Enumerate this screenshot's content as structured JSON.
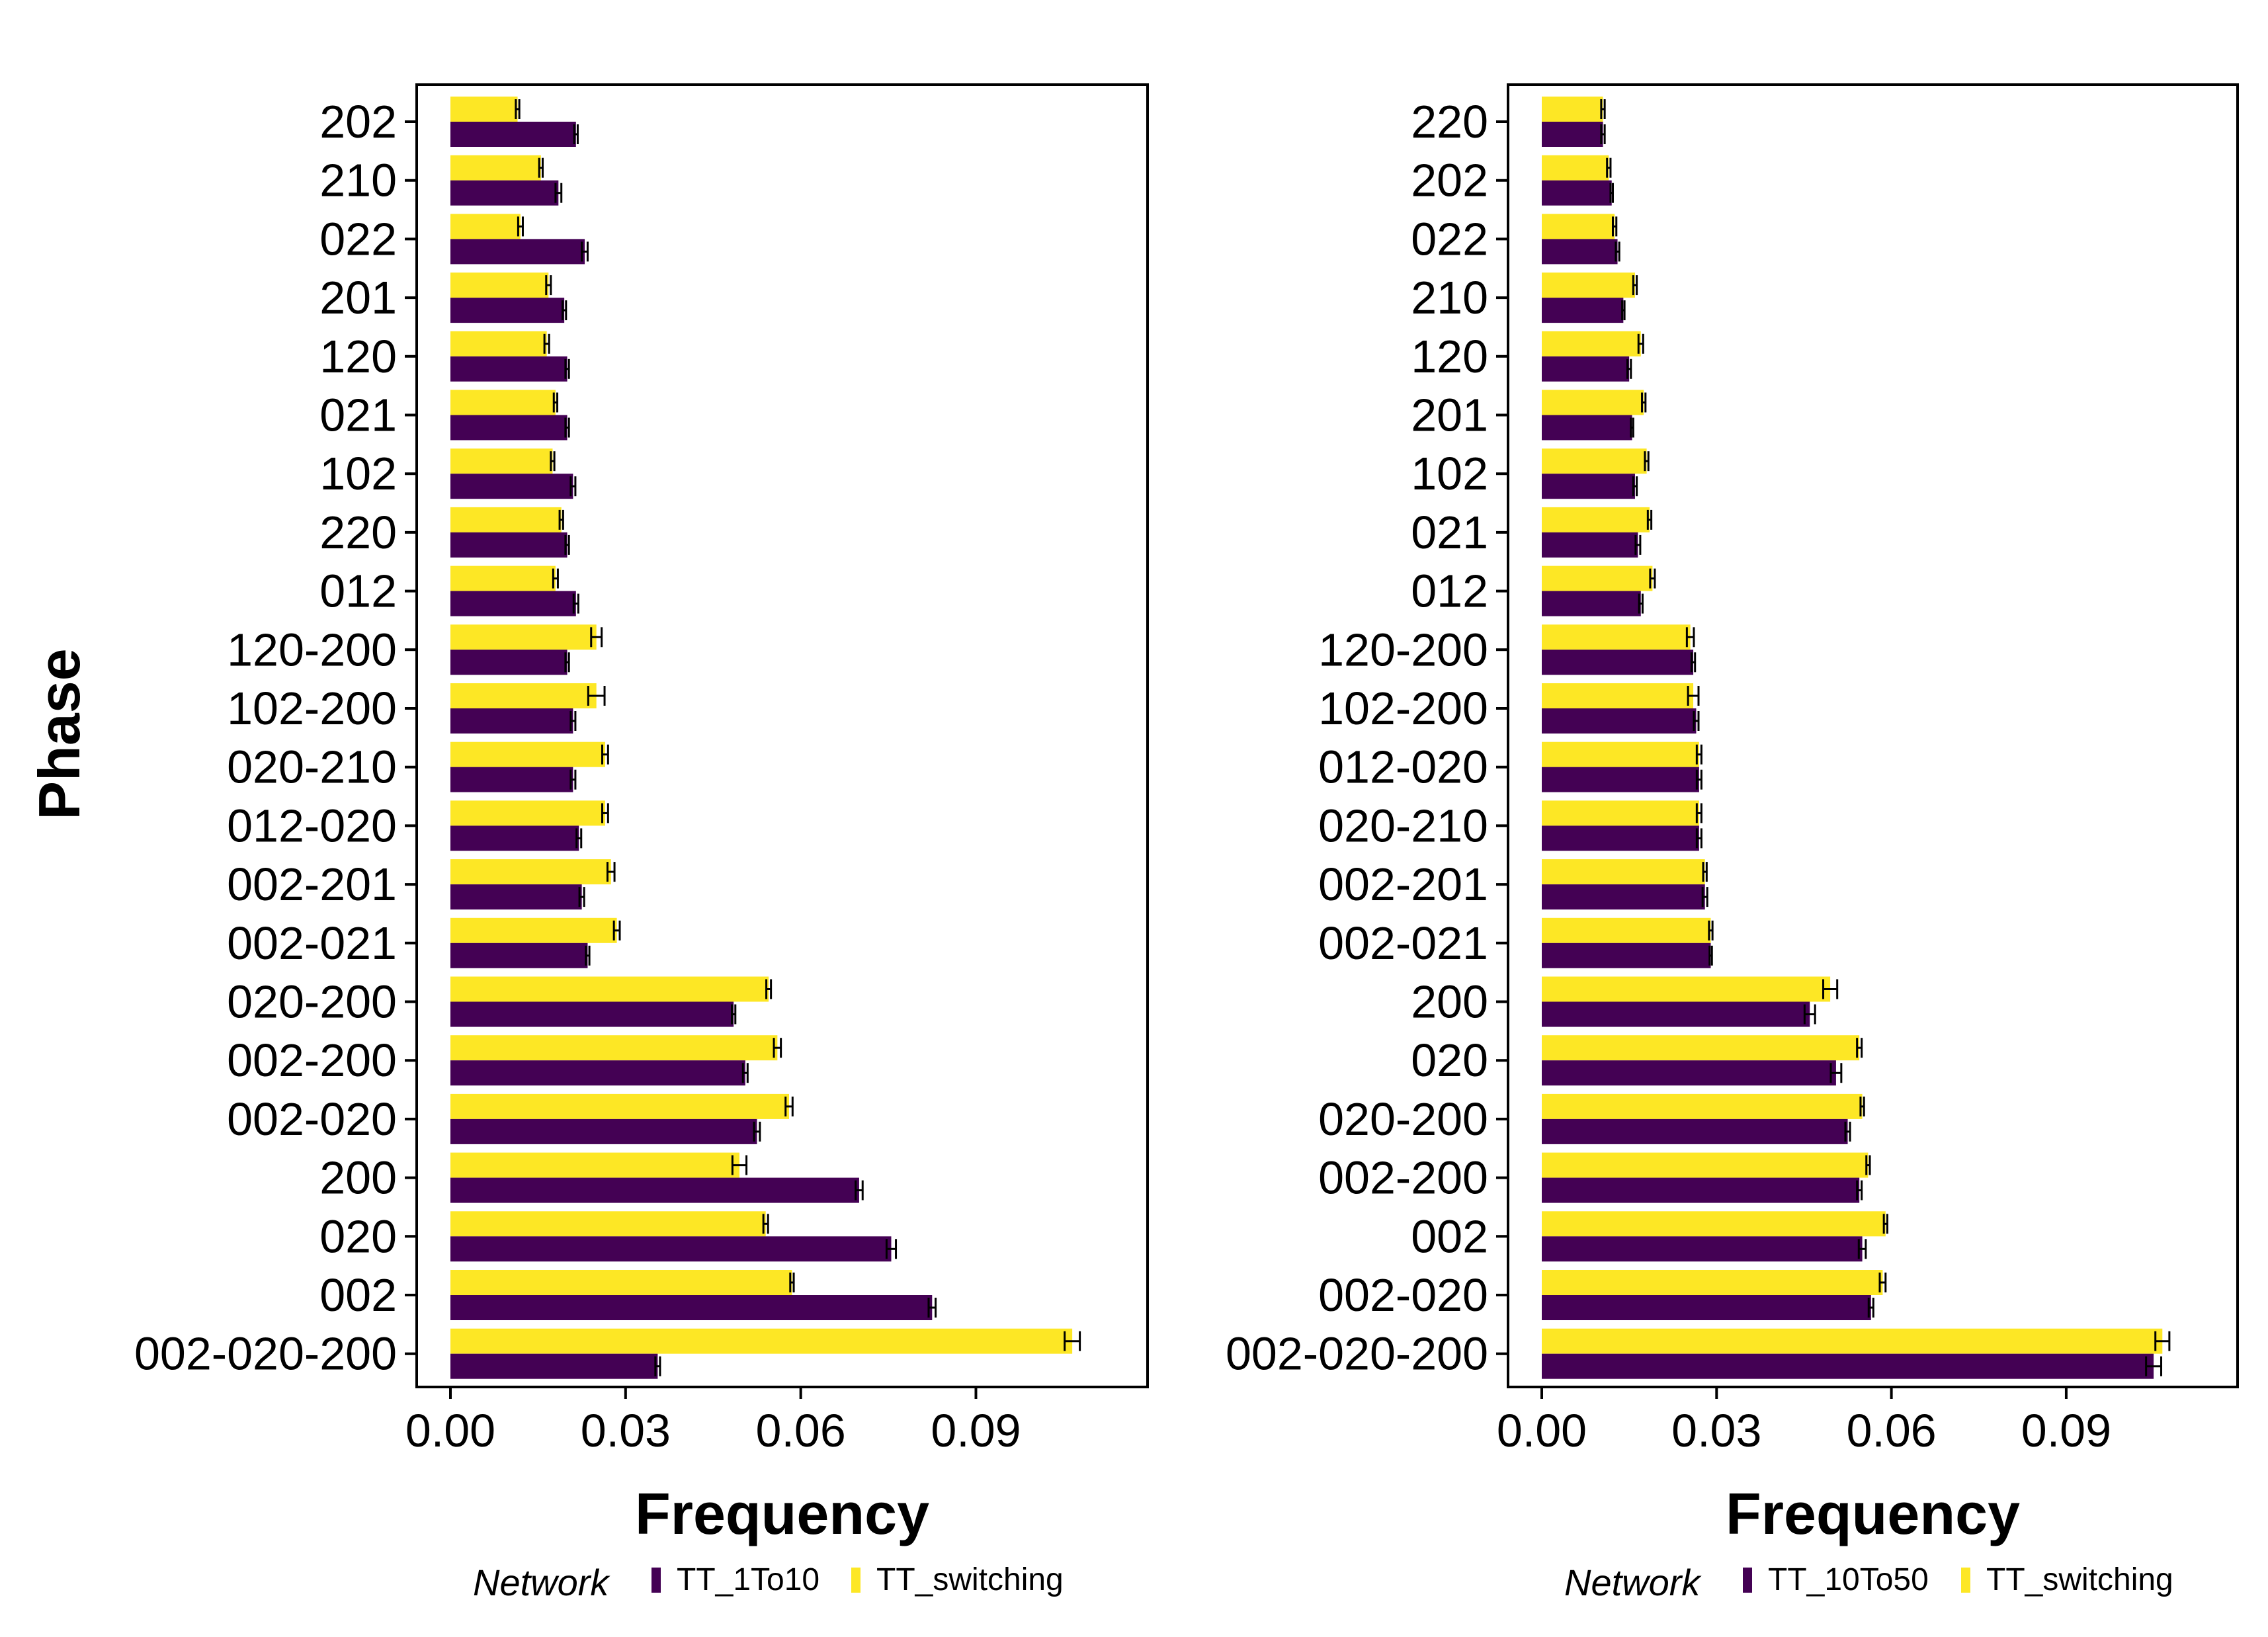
{
  "y_axis_title": "Phase",
  "colors": {
    "purple": "#440154",
    "yellow": "#FDE725",
    "frame": "#000000"
  },
  "chart_data": [
    {
      "type": "bar",
      "orientation": "horizontal",
      "xlabel": "Frequency",
      "ylabel": "Phase",
      "xlim": [
        0,
        0.116
      ],
      "xticks": [
        "0.00",
        "0.03",
        "0.06",
        "0.09"
      ],
      "xtick_values": [
        0,
        0.03,
        0.06,
        0.09
      ],
      "grid": false,
      "legend_position": "bottom",
      "legend_title": "Network",
      "categories": [
        "202",
        "210",
        "022",
        "201",
        "120",
        "021",
        "102",
        "220",
        "012",
        "120-200",
        "102-200",
        "020-210",
        "012-020",
        "002-201",
        "002-021",
        "020-200",
        "002-200",
        "002-020",
        "200",
        "020",
        "002",
        "002-020-200"
      ],
      "series": [
        {
          "name": "TT_switching",
          "color": "#FDE725",
          "values": [
            0.0115,
            0.0155,
            0.012,
            0.0168,
            0.0165,
            0.018,
            0.0175,
            0.019,
            0.018,
            0.025,
            0.025,
            0.0265,
            0.0265,
            0.0275,
            0.0285,
            0.0545,
            0.056,
            0.058,
            0.0495,
            0.054,
            0.0585,
            0.1065
          ],
          "errors": [
            0.0003,
            0.0003,
            0.0004,
            0.0004,
            0.0004,
            0.0003,
            0.0003,
            0.0003,
            0.0004,
            0.0009,
            0.0014,
            0.0005,
            0.0005,
            0.0006,
            0.0005,
            0.0004,
            0.0006,
            0.0006,
            0.0012,
            0.0004,
            0.0003,
            0.0013
          ]
        },
        {
          "name": "TT_1To10",
          "color": "#440154",
          "values": [
            0.0215,
            0.0185,
            0.023,
            0.0195,
            0.02,
            0.02,
            0.021,
            0.02,
            0.0215,
            0.02,
            0.021,
            0.021,
            0.022,
            0.0225,
            0.0235,
            0.0485,
            0.0505,
            0.0525,
            0.07,
            0.0755,
            0.0825,
            0.0355
          ],
          "errors": [
            0.0003,
            0.0005,
            0.0005,
            0.0003,
            0.0003,
            0.0003,
            0.0004,
            0.0003,
            0.0004,
            0.0003,
            0.0004,
            0.0004,
            0.0004,
            0.0004,
            0.0003,
            0.0003,
            0.0004,
            0.0005,
            0.0006,
            0.0008,
            0.0006,
            0.0004
          ]
        }
      ]
    },
    {
      "type": "bar",
      "orientation": "horizontal",
      "xlabel": "Frequency",
      "ylabel": "",
      "xlim": [
        0,
        0.116
      ],
      "xticks": [
        "0.00",
        "0.03",
        "0.06",
        "0.09"
      ],
      "xtick_values": [
        0,
        0.03,
        0.06,
        0.09
      ],
      "grid": false,
      "legend_position": "bottom",
      "legend_title": "Network",
      "categories": [
        "220",
        "202",
        "022",
        "210",
        "120",
        "201",
        "102",
        "021",
        "012",
        "120-200",
        "102-200",
        "012-020",
        "020-210",
        "002-201",
        "002-021",
        "200",
        "020",
        "020-200",
        "002-200",
        "002",
        "002-020",
        "002-020-200"
      ],
      "series": [
        {
          "name": "TT_switching",
          "color": "#FDE725",
          "values": [
            0.0105,
            0.0115,
            0.0125,
            0.016,
            0.017,
            0.0175,
            0.018,
            0.0185,
            0.019,
            0.0255,
            0.026,
            0.027,
            0.027,
            0.028,
            0.029,
            0.0495,
            0.0545,
            0.055,
            0.056,
            0.059,
            0.0585,
            0.1065
          ],
          "errors": [
            0.0003,
            0.0003,
            0.0003,
            0.0003,
            0.0004,
            0.0003,
            0.0003,
            0.0003,
            0.0004,
            0.0006,
            0.0009,
            0.0004,
            0.0004,
            0.0003,
            0.0003,
            0.0012,
            0.0004,
            0.0003,
            0.0003,
            0.0003,
            0.0005,
            0.0012
          ]
        },
        {
          "name": "TT_10To50",
          "color": "#440154",
          "values": [
            0.0105,
            0.012,
            0.013,
            0.014,
            0.015,
            0.0155,
            0.016,
            0.0165,
            0.017,
            0.026,
            0.0265,
            0.027,
            0.027,
            0.028,
            0.029,
            0.046,
            0.0505,
            0.0525,
            0.0545,
            0.055,
            0.0565,
            0.105
          ],
          "errors": [
            0.0003,
            0.0002,
            0.0003,
            0.0002,
            0.0003,
            0.0002,
            0.0003,
            0.0004,
            0.0003,
            0.0003,
            0.0004,
            0.0004,
            0.0004,
            0.0004,
            0.0002,
            0.0009,
            0.0009,
            0.0004,
            0.0004,
            0.0006,
            0.0004,
            0.0013
          ]
        }
      ]
    }
  ]
}
